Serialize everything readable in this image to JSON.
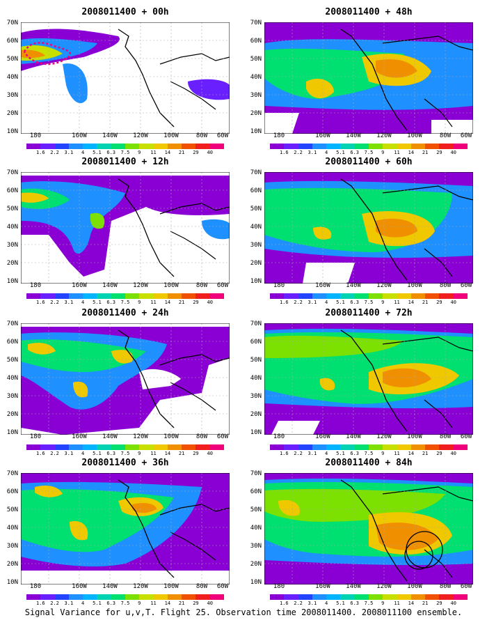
{
  "panels": [
    {
      "title": "2008011400 + 00h"
    },
    {
      "title": "2008011400 + 48h"
    },
    {
      "title": "2008011400 + 12h"
    },
    {
      "title": "2008011400 + 60h"
    },
    {
      "title": "2008011400 + 24h"
    },
    {
      "title": "2008011400 + 72h"
    },
    {
      "title": "2008011400 + 36h"
    },
    {
      "title": "2008011400 + 84h"
    }
  ],
  "y_labels": [
    "70N",
    "60N",
    "50N",
    "40N",
    "30N",
    "20N",
    "10N"
  ],
  "x_labels": [
    "180",
    "160W",
    "140W",
    "120W",
    "100W",
    "80W",
    "60W"
  ],
  "colorbar": {
    "labels": [
      "1.6",
      "2.2",
      "3.1",
      "4",
      "5.1",
      "6.3",
      "7.5",
      "9",
      "11",
      "14",
      "21",
      "29",
      "40"
    ],
    "colors": [
      "#8a00d4",
      "#6a1fff",
      "#2244ff",
      "#1e90ff",
      "#00b4ff",
      "#00d2b4",
      "#00e070",
      "#7ce000",
      "#c8e000",
      "#f0c800",
      "#f09000",
      "#f05000",
      "#f01e1e",
      "#f0007a"
    ]
  },
  "caption": "Signal Variance for u,v,T. Flight 25. Observation time 2008011400. 2008011100 ensemble."
}
